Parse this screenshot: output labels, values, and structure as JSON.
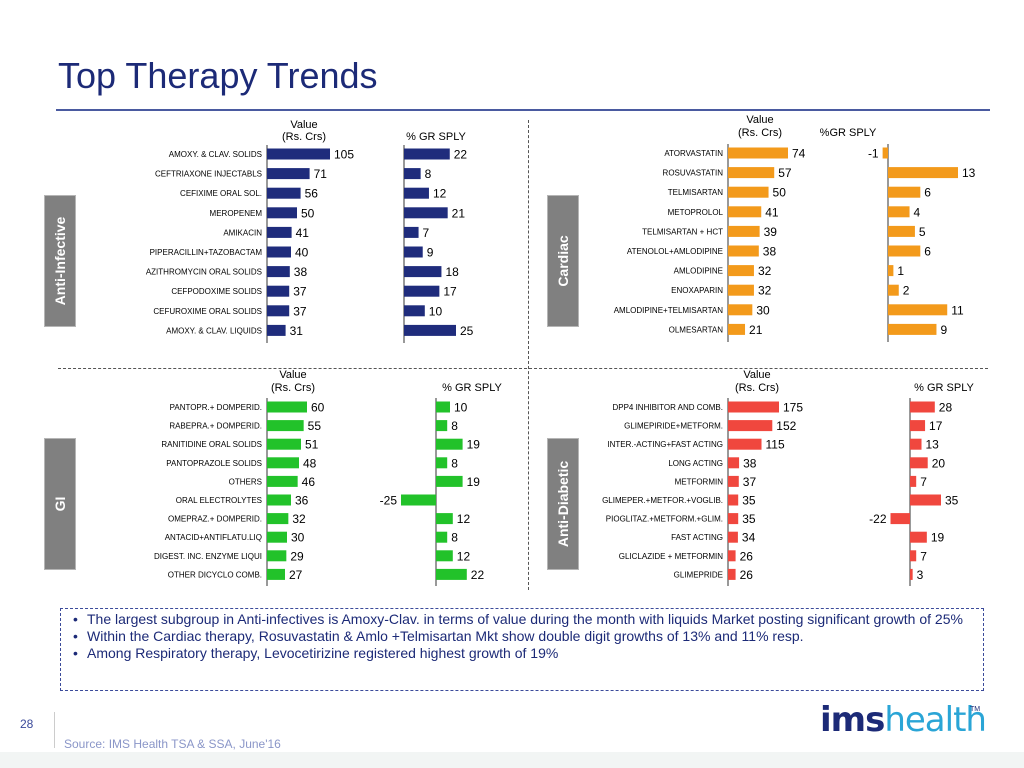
{
  "page": {
    "title": "Top Therapy Trends",
    "page_number": "28",
    "source": "Source: IMS Health TSA & SSA, June'16",
    "logo": {
      "ims": "ims",
      "health": "health",
      "tm": "TM"
    }
  },
  "insights": [
    "The largest subgroup in Anti-infectives is Amoxy-Clav. in terms of value during the month with liquids Market posting significant growth of 25%",
    "Within the Cardiac therapy, Rosuvastatin & Amlo +Telmisartan Mkt show double digit growths of 13% and 11% resp.",
    "Among Respiratory therapy, Levocetirizine registered highest growth of 19%"
  ],
  "chart_data": [
    {
      "type": "bar",
      "therapy": "Anti-Infective",
      "color": "#1f2c7c",
      "value_header": [
        "Value",
        "(Rs. Crs)"
      ],
      "growth_header": "% GR SPLY",
      "categories": [
        "AMOXY. & CLAV. SOLIDS",
        "CEFTRIAXONE INJECTABLS",
        "CEFIXIME ORAL SOL.",
        "MEROPENEM",
        "AMIKACIN",
        "PIPERACILLIN+TAZOBACTAM",
        "AZITHROMYCIN ORAL SOLIDS",
        "CEFPODOXIME SOLIDS",
        "CEFUROXIME ORAL SOLIDS",
        "AMOXY. & CLAV. LIQUIDS"
      ],
      "series": [
        {
          "values": [
            105,
            71,
            56,
            50,
            41,
            40,
            38,
            37,
            37,
            31
          ]
        },
        {
          "values": [
            22,
            8,
            12,
            21,
            7,
            9,
            18,
            17,
            10,
            25
          ]
        }
      ]
    },
    {
      "type": "bar",
      "therapy": "Cardiac",
      "color": "#f39a1b",
      "value_header": [
        "Value",
        "(Rs. Crs)"
      ],
      "growth_header": "%GR SPLY",
      "categories": [
        "ATORVASTATIN",
        "ROSUVASTATIN",
        "TELMISARTAN",
        "METOPROLOL",
        "TELMISARTAN + HCT",
        "ATENOLOL+AMLODIPINE",
        "AMLODIPINE",
        "ENOXAPARIN",
        "AMLODIPINE+TELMISARTAN",
        "OLMESARTAN"
      ],
      "series": [
        {
          "values": [
            74,
            57,
            50,
            41,
            39,
            38,
            32,
            32,
            30,
            21
          ]
        },
        {
          "values": [
            -1,
            13,
            6,
            4,
            5,
            6,
            1,
            2,
            11,
            9
          ]
        }
      ]
    },
    {
      "type": "bar",
      "therapy": "GI",
      "color": "#22c22a",
      "value_header": [
        "Value",
        "(Rs. Crs)"
      ],
      "growth_header": "% GR SPLY",
      "categories": [
        "PANTOPR.+ DOMPERID.",
        "RABEPRA.+ DOMPERID.",
        "RANITIDINE ORAL SOLIDS",
        "PANTOPRAZOLE SOLIDS",
        "OTHERS",
        "ORAL ELECTROLYTES",
        "OMEPRAZ.+ DOMPERID.",
        "ANTACID+ANTIFLATU.LIQ",
        "DIGEST. INC. ENZYME LIQUI",
        "OTHER DICYCLO COMB."
      ],
      "series": [
        {
          "values": [
            60,
            55,
            51,
            48,
            46,
            36,
            32,
            30,
            29,
            27
          ]
        },
        {
          "values": [
            10,
            8,
            19,
            8,
            19,
            -25,
            12,
            8,
            12,
            22
          ]
        }
      ]
    },
    {
      "type": "bar",
      "therapy": "Anti-Diabetic",
      "color": "#f0473e",
      "value_header": [
        "Value",
        "(Rs. Crs)"
      ],
      "growth_header": "% GR SPLY",
      "categories": [
        "DPP4 INHIBITOR AND COMB.",
        "GLIMEPIRIDE+METFORM.",
        "INTER.-ACTING+FAST ACTING",
        "LONG ACTING",
        "METFORMIN",
        "GLIMEPER.+METFOR.+VOGLIB.",
        "PIOGLITAZ.+METFORM.+GLIM.",
        "FAST ACTING",
        "GLICLAZIDE + METFORMIN",
        "GLIMEPRIDE"
      ],
      "series": [
        {
          "values": [
            175,
            152,
            115,
            38,
            37,
            35,
            35,
            34,
            26,
            26
          ]
        },
        {
          "values": [
            28,
            17,
            13,
            20,
            7,
            35,
            -22,
            19,
            7,
            3
          ]
        }
      ]
    }
  ]
}
